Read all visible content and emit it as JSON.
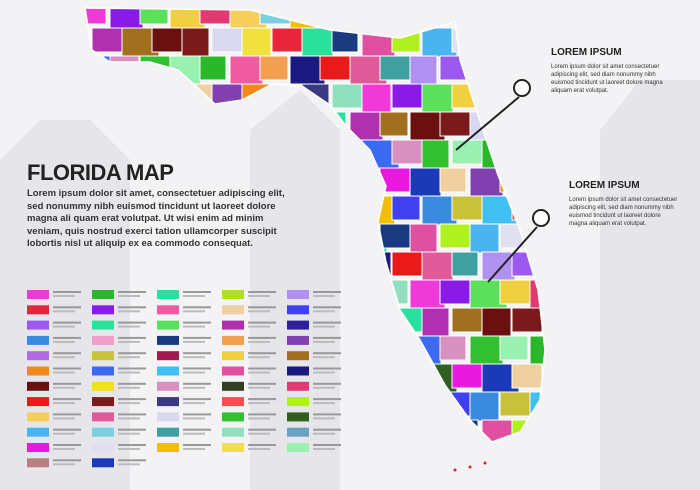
{
  "title": "FLORIDA MAP",
  "description": "Lorem ipsum dolor sit amet, consectetuer adipiscing elit, sed nonummy nibh euismod tincidunt ut laoreet dolore magna ali quam erat volutpat. Ut wisi enim ad minim veniam, quis nostrud exerci tation ullamcorper suscipit lobortis nisl ut aliquip ex ea commodo consequat.",
  "callouts": [
    {
      "heading": "LOREM IPSUM",
      "body": "Lorem ipsum dolor sit amet consectetuer adipiscing elit, sed diam nonummy nibh euismod tincidunt ut laoreet dolore magna aliquam erat volutpat."
    },
    {
      "heading": "LOREM IPSUM",
      "body": "Lorem ipsum dolor sit amet consectetuer adipiscing elit, sed diam nonummy nibh euismod tincidunt ut laoreet dolore magna aliquam erat volutpat."
    }
  ],
  "legend": {
    "columns": [
      [
        "#f03ad8",
        "#e8263b",
        "#9b59f0",
        "#3a8be0",
        "#b36ae6",
        "#f08a1a",
        "#6b1010",
        "#e81a1a",
        "#f5cf5a",
        "#4ab4f0",
        "#e81ae0",
        "#b88080"
      ],
      [
        "#2ab82a",
        "#8a1ae8",
        "#2ae09a",
        "#f0a0c8",
        "#c8c23a",
        "#3a6bf0",
        "#f0e020",
        "#7a1a1a",
        "#e05a9a",
        "#7ad0e0",
        "#e0e0f0",
        "#1a3ab8"
      ],
      [
        "#2ae0a0",
        "#f05aa0",
        "#5ae05a",
        "#1a3a80",
        "#a01a50",
        "#40c0f0",
        "#d890c0",
        "#3a3a80",
        "#d8d8f0",
        "#40a0a0",
        "#f0c000"
      ],
      [
        "#b0e020",
        "#f0d0a0",
        "#b030b0",
        "#f0a050",
        "#f0d040",
        "#e050a0",
        "#304020",
        "#f05050",
        "#30c030",
        "#90e0c0",
        "#f0e040"
      ],
      [
        "#b090f0",
        "#4040f0",
        "#3020a0",
        "#8040b0",
        "#a07020",
        "#1a1a80",
        "#e03a70",
        "#b0f020",
        "#306020",
        "#6aa0c0",
        "#9af0b0"
      ]
    ]
  }
}
